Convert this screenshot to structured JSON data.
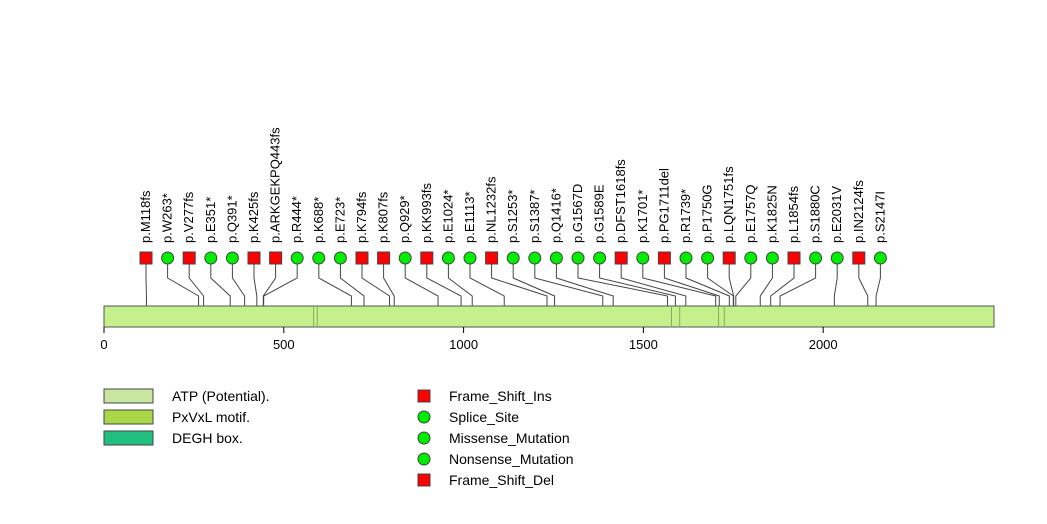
{
  "colors": {
    "protein_bar": "#c6f08c",
    "square_marker": "#ff0000",
    "circle_marker": "#00ee00",
    "atp": "#c8e6a0",
    "pxvxl": "#a8d848",
    "degh": "#22c080"
  },
  "chart_data": {
    "type": "lollipop",
    "protein_length": 2475,
    "x_axis": {
      "min": 0,
      "max": 2475,
      "ticks": [
        0,
        500,
        1000,
        1500,
        2000
      ]
    },
    "domain_marks": [
      {
        "name": "ATP (Potential).",
        "pos": 583
      },
      {
        "name": "ATP (Potential).",
        "pos": 593
      },
      {
        "name": "DEGH box.",
        "pos": 1578
      },
      {
        "name": "DEGH box.",
        "pos": 1601
      },
      {
        "name": "PxVxL motif.",
        "pos": 1709
      },
      {
        "name": "PxVxL motif.",
        "pos": 1725
      }
    ],
    "mutations": [
      {
        "label": "p.M118fs",
        "pos": 118,
        "type": "Frame_Shift_Del"
      },
      {
        "label": "p.W263*",
        "pos": 263,
        "type": "Nonsense_Mutation"
      },
      {
        "label": "p.V277fs",
        "pos": 277,
        "type": "Frame_Shift_Del"
      },
      {
        "label": "p.E351*",
        "pos": 351,
        "type": "Nonsense_Mutation"
      },
      {
        "label": "p.Q391*",
        "pos": 391,
        "type": "Nonsense_Mutation"
      },
      {
        "label": "p.K425fs",
        "pos": 425,
        "type": "Frame_Shift_Del"
      },
      {
        "label": "p.ARKGEKPQ443fs",
        "pos": 443,
        "type": "Frame_Shift_Del"
      },
      {
        "label": "p.R444*",
        "pos": 444,
        "type": "Nonsense_Mutation"
      },
      {
        "label": "p.K688*",
        "pos": 688,
        "type": "Nonsense_Mutation"
      },
      {
        "label": "p.E723*",
        "pos": 723,
        "type": "Nonsense_Mutation"
      },
      {
        "label": "p.K794fs",
        "pos": 794,
        "type": "Frame_Shift_Del"
      },
      {
        "label": "p.K807fs",
        "pos": 807,
        "type": "Frame_Shift_Del"
      },
      {
        "label": "p.Q929*",
        "pos": 929,
        "type": "Nonsense_Mutation"
      },
      {
        "label": "p.KK993fs",
        "pos": 993,
        "type": "Frame_Shift_Del"
      },
      {
        "label": "p.E1024*",
        "pos": 1024,
        "type": "Nonsense_Mutation"
      },
      {
        "label": "p.E1113*",
        "pos": 1113,
        "type": "Nonsense_Mutation"
      },
      {
        "label": "p.NL1232fs",
        "pos": 1232,
        "type": "Frame_Shift_Del"
      },
      {
        "label": "p.S1253*",
        "pos": 1253,
        "type": "Nonsense_Mutation"
      },
      {
        "label": "p.S1387*",
        "pos": 1387,
        "type": "Nonsense_Mutation"
      },
      {
        "label": "p.Q1416*",
        "pos": 1416,
        "type": "Nonsense_Mutation"
      },
      {
        "label": "p.G1567D",
        "pos": 1567,
        "type": "Missense_Mutation"
      },
      {
        "label": "p.G1589E",
        "pos": 1589,
        "type": "Missense_Mutation"
      },
      {
        "label": "p.DFST1618fs",
        "pos": 1618,
        "type": "Frame_Shift_Del"
      },
      {
        "label": "p.K1701*",
        "pos": 1701,
        "type": "Nonsense_Mutation"
      },
      {
        "label": "p.PG1711del",
        "pos": 1711,
        "type": "Frame_Shift_Del"
      },
      {
        "label": "p.R1739*",
        "pos": 1739,
        "type": "Nonsense_Mutation"
      },
      {
        "label": "p.P1750G",
        "pos": 1750,
        "type": "Missense_Mutation"
      },
      {
        "label": "p.LQN1751fs",
        "pos": 1751,
        "type": "Frame_Shift_Del"
      },
      {
        "label": "p.E1757Q",
        "pos": 1757,
        "type": "Missense_Mutation"
      },
      {
        "label": "p.K1825N",
        "pos": 1825,
        "type": "Missense_Mutation"
      },
      {
        "label": "p.L1854fs",
        "pos": 1854,
        "type": "Frame_Shift_Del"
      },
      {
        "label": "p.S1880C",
        "pos": 1880,
        "type": "Missense_Mutation"
      },
      {
        "label": "p.E2031V",
        "pos": 2031,
        "type": "Missense_Mutation"
      },
      {
        "label": "p.IN2124fs",
        "pos": 2124,
        "type": "Frame_Shift_Del"
      },
      {
        "label": "p.S2147I",
        "pos": 2147,
        "type": "Missense_Mutation"
      }
    ],
    "legend_domains": [
      {
        "label": "ATP (Potential).",
        "color_key": "atp"
      },
      {
        "label": "PxVxL motif.",
        "color_key": "pxvxl"
      },
      {
        "label": "DEGH box.",
        "color_key": "degh"
      }
    ],
    "legend_markers": [
      {
        "label": "Frame_Shift_Ins",
        "shape": "square"
      },
      {
        "label": "Splice_Site",
        "shape": "circle"
      },
      {
        "label": "Missense_Mutation",
        "shape": "circle"
      },
      {
        "label": "Nonsense_Mutation",
        "shape": "circle"
      },
      {
        "label": "Frame_Shift_Del",
        "shape": "square"
      }
    ]
  }
}
